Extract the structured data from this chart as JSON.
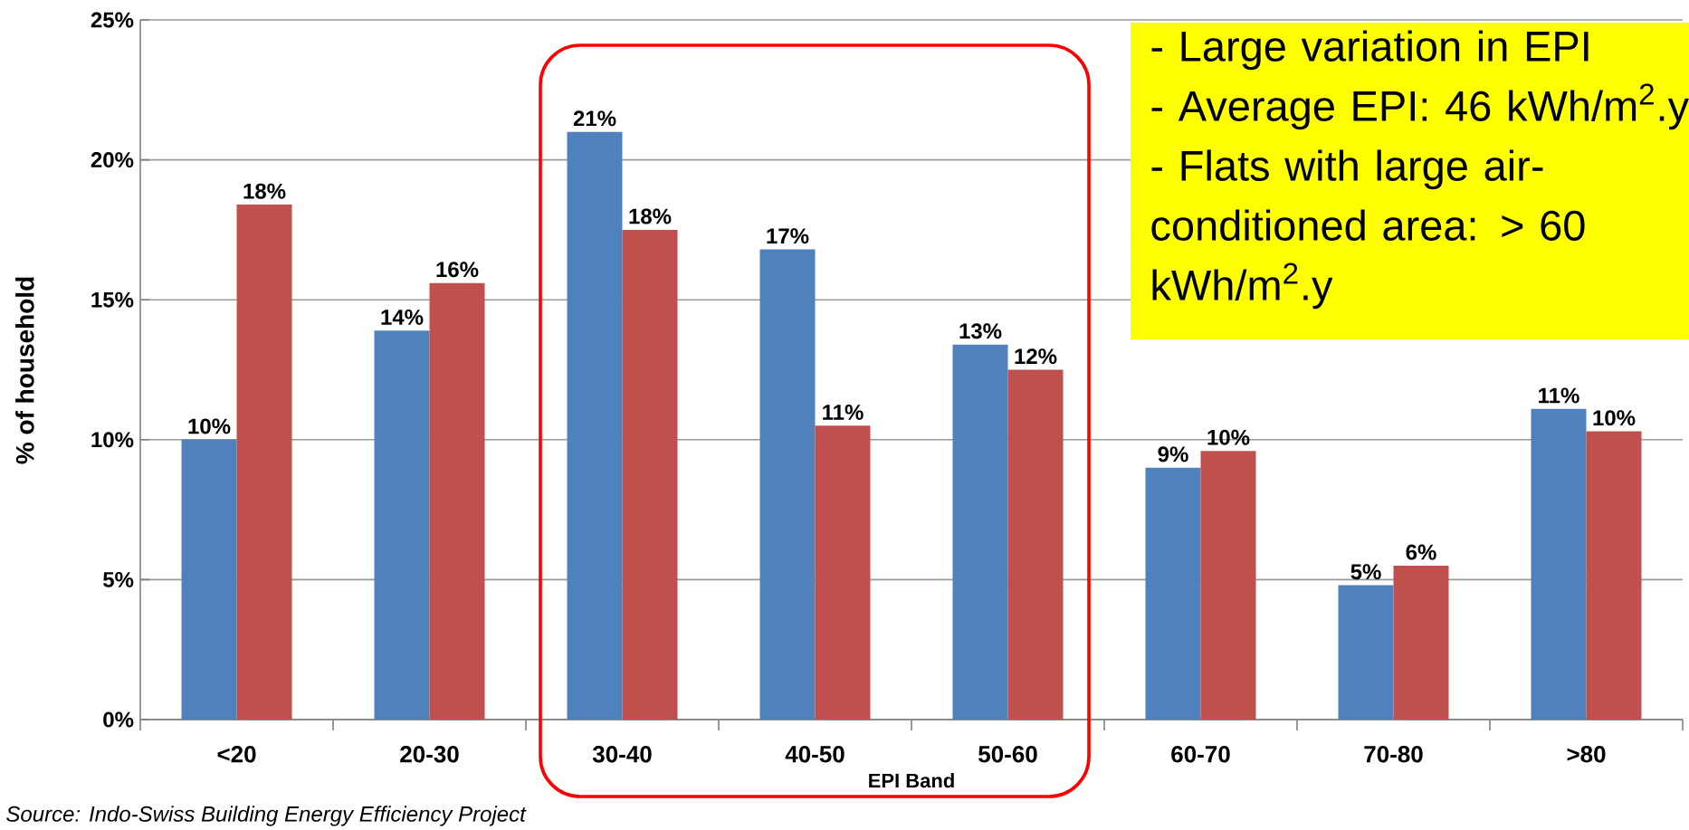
{
  "chart_data": {
    "type": "bar",
    "xlabel": "EPI Band",
    "ylabel": "% of household",
    "categories": [
      "<20",
      "20-30",
      "30-40",
      "40-50",
      "50-60",
      "60-70",
      "70-80",
      ">80"
    ],
    "series": [
      {
        "color": "#4f81bd",
        "values": [
          10.0,
          13.9,
          21.0,
          16.8,
          13.4,
          9.0,
          4.8,
          11.1
        ],
        "value_labels": [
          "10%",
          "14%",
          "21%",
          "17%",
          "13%",
          "9%",
          "5%",
          "11%"
        ]
      },
      {
        "color": "#c0504d",
        "values": [
          18.4,
          15.6,
          17.5,
          10.5,
          12.5,
          9.6,
          5.5,
          10.3
        ],
        "value_labels": [
          "18%",
          "16%",
          "18%",
          "11%",
          "12%",
          "10%",
          "6%",
          "10%"
        ]
      }
    ],
    "ylim": [
      0,
      25
    ],
    "yticks": [
      {
        "value": 0,
        "label": "0%"
      },
      {
        "value": 5,
        "label": "5%"
      },
      {
        "value": 10,
        "label": "10%"
      },
      {
        "value": 15,
        "label": "15%"
      },
      {
        "value": 20,
        "label": "20%"
      },
      {
        "value": 25,
        "label": "25%"
      }
    ],
    "grid": "y",
    "annotations": [
      "- Large variation in EPI",
      "- Average EPI: 46 kWh/m$^{2}$.y",
      "- Flats with large air-conditioned area: > 60 kWh/m$^{2}$.y",
      "Source: Indo-Swiss Building Energy Efficiency Project"
    ]
  }
}
